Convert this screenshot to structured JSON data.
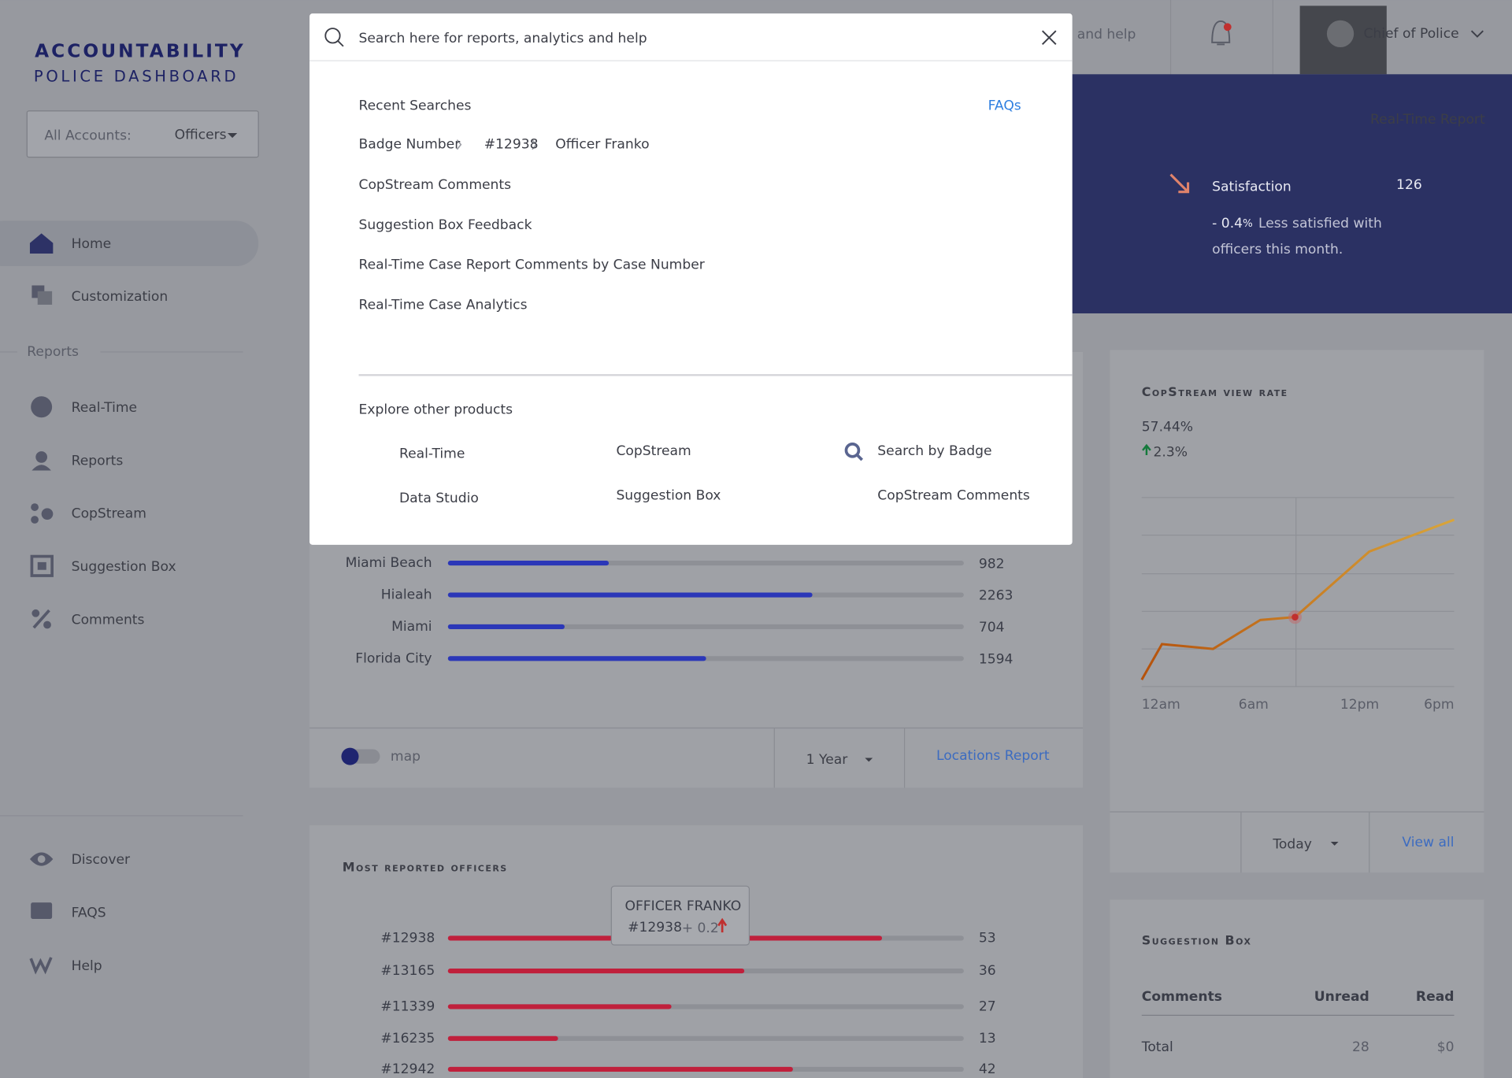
{
  "sidebar": {
    "brand": [
      "ACCOUNTABILITY",
      "POLICE DASHBOARD"
    ],
    "account_label": "All Accounts:",
    "account_value": "Officers",
    "nav": [
      "Home",
      "Customization"
    ],
    "reports_heading": "Reports",
    "reports": [
      "Real-Time",
      "Reports",
      "CopStream",
      "Suggestion Box",
      "Comments"
    ],
    "footer": [
      "Discover",
      "FAQS",
      "Help"
    ]
  },
  "header": {
    "search_tail": "and help",
    "user": "Chief of Police"
  },
  "banner": {
    "link": "Real-Time Report",
    "title": "Satisfaction",
    "score": 126,
    "change_value": "- 0.4",
    "change_unit": "%",
    "desc_lines": [
      "Less satisfied with",
      "officers this month."
    ]
  },
  "search": {
    "placeholder": "Search here for reports, analytics and help",
    "recent_heading": "Recent Searches",
    "faqs": "FAQs",
    "breadcrumb": [
      "Badge Number",
      "#12938",
      "Officer Franko"
    ],
    "recent": [
      "CopStream Comments",
      "Suggestion Box Feedback",
      "Real-Time Case Report Comments by Case Number",
      "Real-Time Case Analytics"
    ],
    "explore_heading": "Explore other products",
    "products": [
      "Real-Time",
      "CopStream",
      "Search by Badge",
      "Data Studio",
      "Suggestion Box",
      "CopStream Comments"
    ]
  },
  "locations": {
    "rows": [
      {
        "name": "Miami Beach",
        "value": 982
      },
      {
        "name": "Hialeah",
        "value": 2263
      },
      {
        "name": "Miami",
        "value": 704
      },
      {
        "name": "Florida City",
        "value": 1594
      }
    ],
    "toggle_label": "map",
    "period": "1 Year",
    "link": "Locations Report"
  },
  "copstream": {
    "title": "CopStream view rate",
    "rate": "57.44%",
    "change": "2.3%",
    "x_labels": [
      "12am",
      "6am",
      "12pm",
      "6pm"
    ],
    "period": "Today",
    "link": "View all"
  },
  "officers": {
    "title": "Most reported officers",
    "tooltip": {
      "name": "OFFICER FRANKO",
      "badge": "#12938",
      "change": "+ 0.2"
    },
    "rows": [
      {
        "badge": "#12938",
        "value": 53
      },
      {
        "badge": "#13165",
        "value": 36
      },
      {
        "badge": "#11339",
        "value": 27
      },
      {
        "badge": "#16235",
        "value": 13
      },
      {
        "badge": "#12942",
        "value": 42
      }
    ]
  },
  "suggestion_box": {
    "title": "Suggestion Box",
    "columns": [
      "Comments",
      "Unread",
      "Read"
    ],
    "rows": [
      [
        "Total",
        "28",
        "$0"
      ]
    ]
  }
}
